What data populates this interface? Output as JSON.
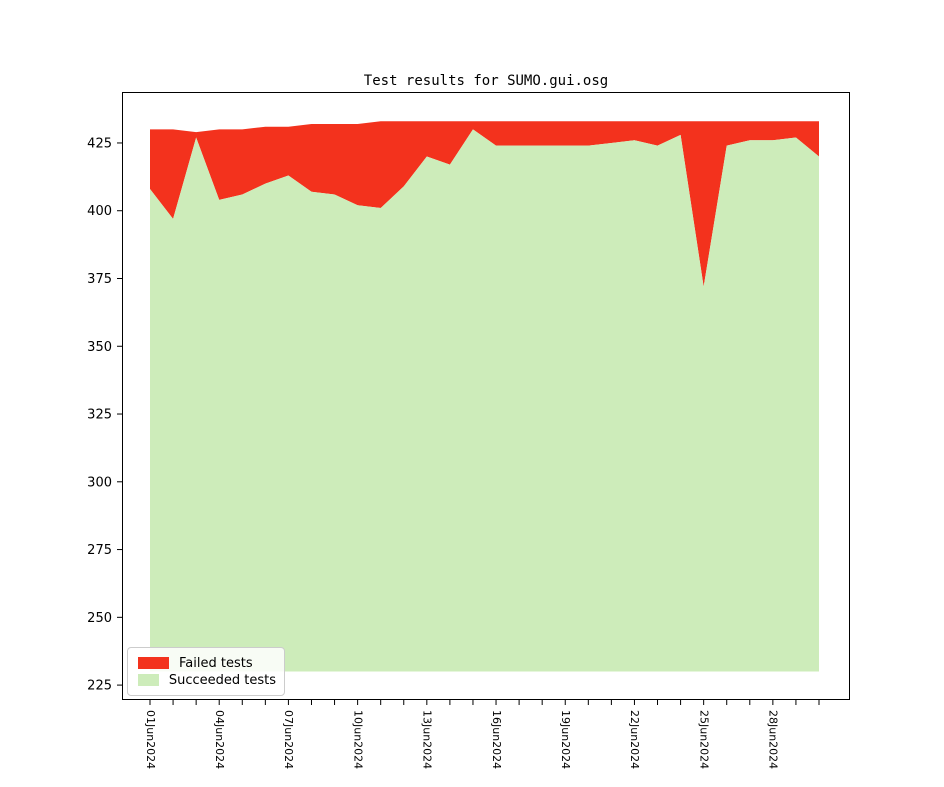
{
  "title": "Test results for SUMO.gui.osg",
  "colors": {
    "failed": "#f3321d",
    "succeeded": "#cdecba",
    "axis": "#000000",
    "text": "#000000",
    "legend_border": "#cccccc"
  },
  "legend": {
    "items": [
      {
        "label": "Failed tests",
        "color_key": "failed"
      },
      {
        "label": "Succeeded tests",
        "color_key": "succeeded"
      }
    ]
  },
  "chart_data": {
    "type": "area",
    "stacked": true,
    "title": "Test results for SUMO.gui.osg",
    "xlabel": "",
    "ylabel": "",
    "x": [
      "01Jun2024",
      "02Jun2024",
      "03Jun2024",
      "04Jun2024",
      "05Jun2024",
      "06Jun2024",
      "07Jun2024",
      "08Jun2024",
      "09Jun2024",
      "10Jun2024",
      "11Jun2024",
      "12Jun2024",
      "13Jun2024",
      "14Jun2024",
      "15Jun2024",
      "16Jun2024",
      "17Jun2024",
      "18Jun2024",
      "19Jun2024",
      "20Jun2024",
      "21Jun2024",
      "22Jun2024",
      "23Jun2024",
      "24Jun2024",
      "25Jun2024",
      "26Jun2024",
      "27Jun2024",
      "28Jun2024",
      "29Jun2024",
      "30Jun2024"
    ],
    "x_tick_labels_shown": [
      "01Jun2024",
      "04Jun2024",
      "07Jun2024",
      "10Jun2024",
      "13Jun2024",
      "16Jun2024",
      "19Jun2024",
      "22Jun2024",
      "25Jun2024",
      "28Jun2024"
    ],
    "x_label_every_n": 3,
    "series": [
      {
        "name": "Failed tests",
        "values": [
          22,
          33,
          2,
          26,
          24,
          21,
          18,
          25,
          26,
          30,
          32,
          24,
          13,
          16,
          3,
          9,
          9,
          9,
          9,
          9,
          8,
          7,
          9,
          5,
          61,
          9,
          7,
          7,
          6,
          13
        ]
      },
      {
        "name": "Succeeded tests",
        "values": [
          408,
          397,
          427,
          404,
          406,
          410,
          413,
          407,
          406,
          402,
          401,
          409,
          420,
          417,
          430,
          424,
          424,
          424,
          424,
          424,
          425,
          426,
          424,
          428,
          372,
          424,
          426,
          426,
          427,
          420
        ]
      }
    ],
    "baseline": 230,
    "yticks": [
      225,
      250,
      275,
      300,
      325,
      350,
      375,
      400,
      425
    ],
    "ylim": [
      219.5,
      443.8
    ],
    "grid": false,
    "legend_position": "lower-left"
  }
}
